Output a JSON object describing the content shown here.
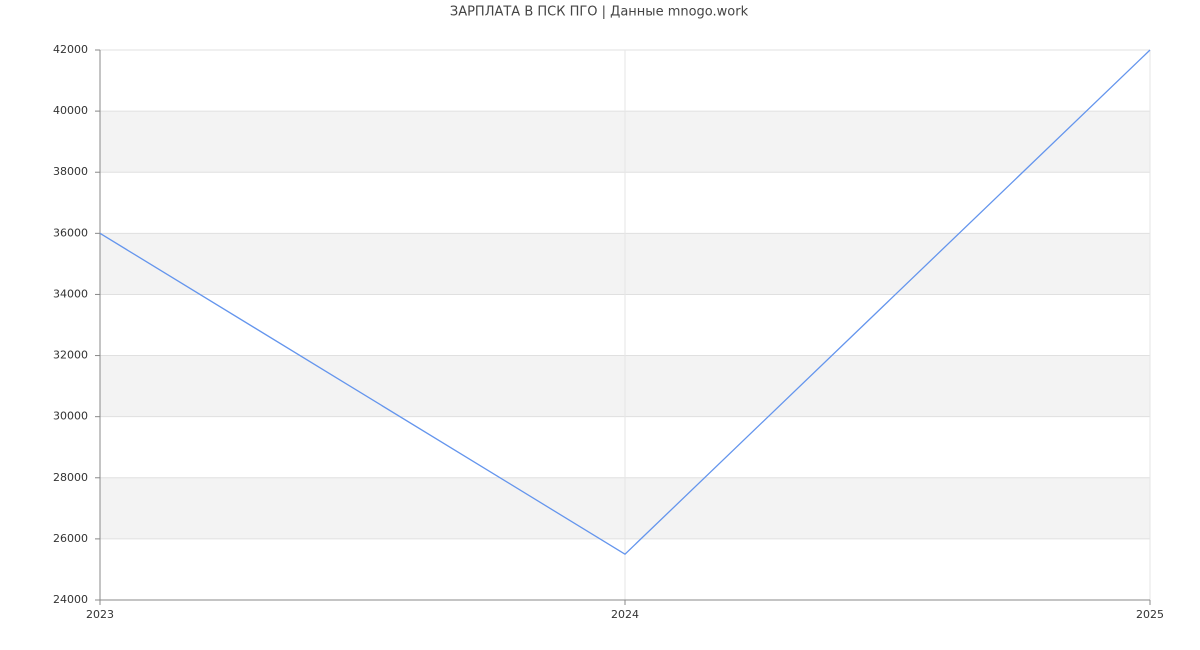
{
  "chart_data": {
    "type": "line",
    "title": "ЗАРПЛАТА В ПСК ПГО | Данные mnogo.work",
    "x": [
      2023,
      2024,
      2025
    ],
    "values": [
      36000,
      25500,
      42000
    ],
    "color": "#6495ed",
    "xlim": [
      2023,
      2025
    ],
    "xticks": [
      2023,
      2024,
      2025
    ],
    "ylim": [
      24000,
      42000
    ],
    "yticks": [
      24000,
      26000,
      28000,
      30000,
      32000,
      34000,
      36000,
      38000,
      40000,
      42000
    ],
    "grid": true
  }
}
